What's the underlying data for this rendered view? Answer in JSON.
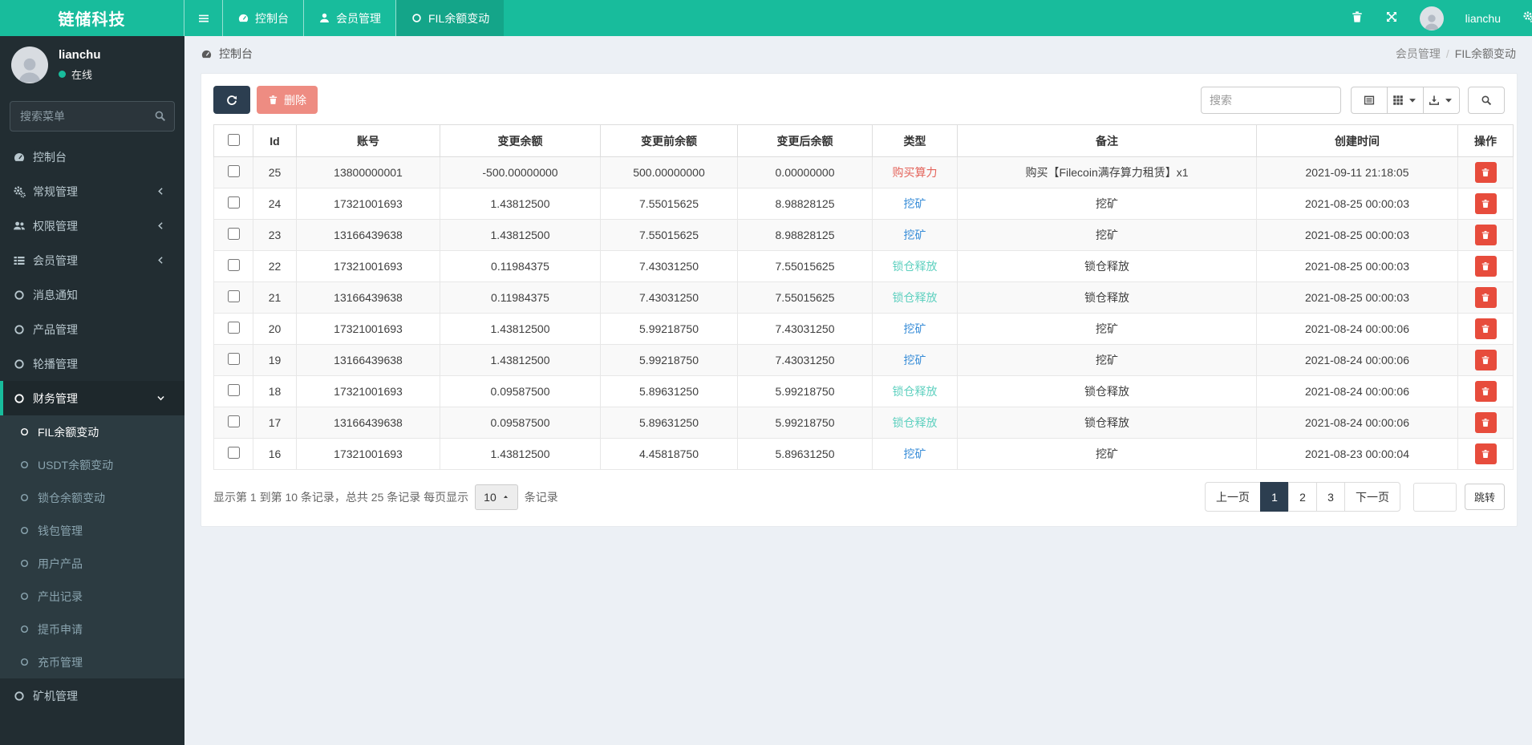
{
  "brand": "链储科技",
  "colors": {
    "accent": "#18bc9c",
    "navbar_active": "#14a589",
    "navy": "#2c3e50",
    "danger": "#e74c3c",
    "sidebar_bg": "#222d32",
    "submenu_bg": "#2c3b41"
  },
  "navbar": {
    "tabs": [
      {
        "icon": "gauge",
        "label": "控制台",
        "active": false
      },
      {
        "icon": "user",
        "label": "会员管理",
        "active": false
      },
      {
        "icon": "circle",
        "label": "FIL余额变动",
        "active": true
      }
    ],
    "username": "lianchu"
  },
  "sidebar": {
    "user_name": "lianchu",
    "user_status": "在线",
    "search_placeholder": "搜索菜单",
    "menu": [
      {
        "icon": "gauge",
        "label": "控制台"
      },
      {
        "icon": "gears",
        "label": "常规管理",
        "chevron": "left"
      },
      {
        "icon": "users",
        "label": "权限管理",
        "chevron": "left"
      },
      {
        "icon": "list",
        "label": "会员管理",
        "chevron": "left"
      },
      {
        "icon": "circle",
        "label": "消息通知"
      },
      {
        "icon": "circle",
        "label": "产品管理"
      },
      {
        "icon": "circle",
        "label": "轮播管理"
      },
      {
        "icon": "circle",
        "label": "财务管理",
        "chevron": "down",
        "active": true,
        "children": [
          {
            "label": "FIL余额变动",
            "active": true
          },
          {
            "label": "USDT余额变动"
          },
          {
            "label": "锁仓余额变动"
          },
          {
            "label": "钱包管理"
          },
          {
            "label": "用户产品"
          },
          {
            "label": "产出记录"
          },
          {
            "label": "提币申请"
          },
          {
            "label": "充币管理"
          }
        ]
      },
      {
        "icon": "circle",
        "label": "矿机管理"
      }
    ]
  },
  "breadcrumb": {
    "left": "控制台",
    "trail_parent": "会员管理",
    "trail_sep": "/",
    "trail_current": "FIL余额变动"
  },
  "toolbar": {
    "delete_label": "删除",
    "search_placeholder": "搜索"
  },
  "table": {
    "headers": [
      "Id",
      "账号",
      "变更余额",
      "变更前余额",
      "变更后余额",
      "类型",
      "备注",
      "创建时间",
      "操作"
    ],
    "type_colors": {
      "购买算力": "#e4645b",
      "挖矿": "#3a8ed8",
      "锁仓释放": "#5ed0bf"
    },
    "rows": [
      {
        "id": "25",
        "account": "13800000001",
        "change": "-500.00000000",
        "before": "500.00000000",
        "after": "0.00000000",
        "type": "购买算力",
        "note": "购买【Filecoin满存算力租赁】x1",
        "time": "2021-09-11 21:18:05"
      },
      {
        "id": "24",
        "account": "17321001693",
        "change": "1.43812500",
        "before": "7.55015625",
        "after": "8.98828125",
        "type": "挖矿",
        "note": "挖矿",
        "time": "2021-08-25 00:00:03"
      },
      {
        "id": "23",
        "account": "13166439638",
        "change": "1.43812500",
        "before": "7.55015625",
        "after": "8.98828125",
        "type": "挖矿",
        "note": "挖矿",
        "time": "2021-08-25 00:00:03"
      },
      {
        "id": "22",
        "account": "17321001693",
        "change": "0.11984375",
        "before": "7.43031250",
        "after": "7.55015625",
        "type": "锁仓释放",
        "note": "锁仓释放",
        "time": "2021-08-25 00:00:03"
      },
      {
        "id": "21",
        "account": "13166439638",
        "change": "0.11984375",
        "before": "7.43031250",
        "after": "7.55015625",
        "type": "锁仓释放",
        "note": "锁仓释放",
        "time": "2021-08-25 00:00:03"
      },
      {
        "id": "20",
        "account": "17321001693",
        "change": "1.43812500",
        "before": "5.99218750",
        "after": "7.43031250",
        "type": "挖矿",
        "note": "挖矿",
        "time": "2021-08-24 00:00:06"
      },
      {
        "id": "19",
        "account": "13166439638",
        "change": "1.43812500",
        "before": "5.99218750",
        "after": "7.43031250",
        "type": "挖矿",
        "note": "挖矿",
        "time": "2021-08-24 00:00:06"
      },
      {
        "id": "18",
        "account": "17321001693",
        "change": "0.09587500",
        "before": "5.89631250",
        "after": "5.99218750",
        "type": "锁仓释放",
        "note": "锁仓释放",
        "time": "2021-08-24 00:00:06"
      },
      {
        "id": "17",
        "account": "13166439638",
        "change": "0.09587500",
        "before": "5.89631250",
        "after": "5.99218750",
        "type": "锁仓释放",
        "note": "锁仓释放",
        "time": "2021-08-24 00:00:06"
      },
      {
        "id": "16",
        "account": "17321001693",
        "change": "1.43812500",
        "before": "4.45818750",
        "after": "5.89631250",
        "type": "挖矿",
        "note": "挖矿",
        "time": "2021-08-23 00:00:04"
      }
    ]
  },
  "footer": {
    "summary_prefix": "显示第 1 到第 10 条记录，总共 25 条记录 每页显示",
    "page_size": "10",
    "summary_suffix": "条记录",
    "pages": [
      "上一页",
      "1",
      "2",
      "3",
      "下一页"
    ],
    "active_page": "1",
    "jump_label": "跳转"
  }
}
